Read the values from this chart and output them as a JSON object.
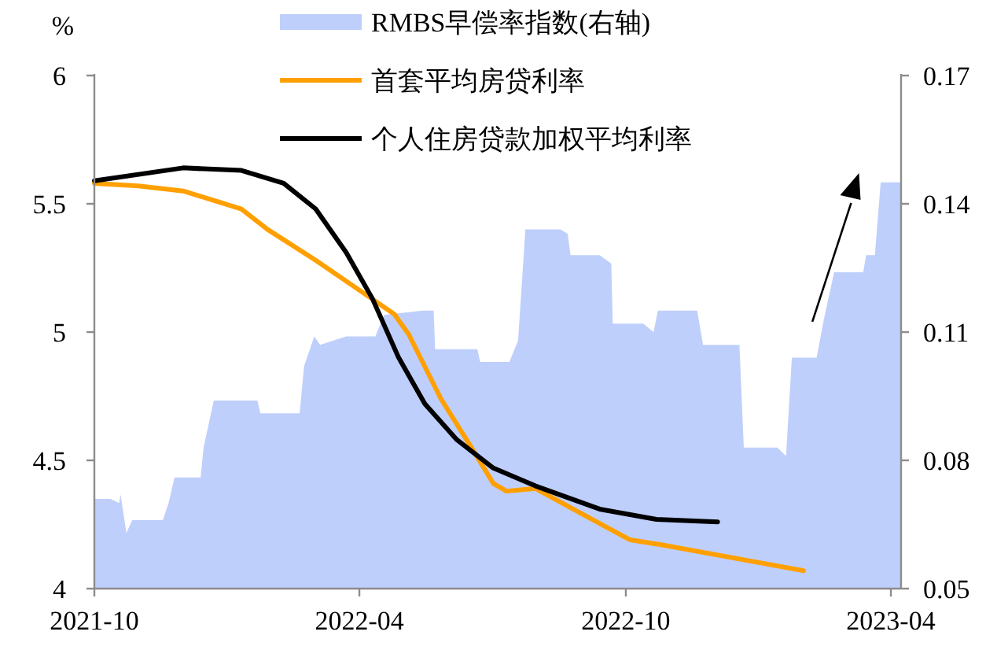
{
  "chart_data": {
    "type": "line",
    "ylabel": "%",
    "legend": "top",
    "xlim": [
      "2021-10-01",
      "2023-04-08"
    ],
    "xticks": [
      {
        "value": "2021-10-01",
        "label": "2021-10"
      },
      {
        "value": "2022-04-01",
        "label": "2022-04"
      },
      {
        "value": "2022-10-01",
        "label": "2022-10"
      },
      {
        "value": "2023-04-01",
        "label": "2023-04"
      }
    ],
    "ylim": [
      4,
      6
    ],
    "yticks": [
      4,
      4.5,
      5,
      5.5,
      6
    ],
    "y2lim": [
      0.05,
      0.17
    ],
    "y2ticks": [
      0.05,
      0.08,
      0.11,
      0.14,
      0.17
    ],
    "series": [
      {
        "name": "RMBS早偿率指数(右轴)",
        "type": "area",
        "axis": "y2",
        "color": "#bfcffc",
        "x": [
          "2021-10-01",
          "2021-10-12",
          "2021-10-18",
          "2021-10-19",
          "2021-10-23",
          "2021-10-27",
          "2021-11-17",
          "2021-11-21",
          "2021-11-25",
          "2021-12-13",
          "2021-12-15",
          "2021-12-22",
          "2022-01-21",
          "2022-01-23",
          "2022-02-19",
          "2022-02-22",
          "2022-03-01",
          "2022-03-05",
          "2022-03-23",
          "2022-04-12",
          "2022-04-18",
          "2022-05-14",
          "2022-05-22",
          "2022-05-23",
          "2022-06-21",
          "2022-06-23",
          "2022-07-13",
          "2022-07-19",
          "2022-07-24",
          "2022-08-17",
          "2022-08-22",
          "2022-08-24",
          "2022-09-13",
          "2022-09-21",
          "2022-09-22",
          "2022-10-13",
          "2022-10-20",
          "2022-10-23",
          "2022-11-19",
          "2022-11-23",
          "2022-12-18",
          "2022-12-21",
          "2023-01-13",
          "2023-01-19",
          "2023-01-23",
          "2023-02-09",
          "2023-02-14",
          "2023-02-21",
          "2023-03-13",
          "2023-03-15",
          "2023-03-21",
          "2023-03-25",
          "2023-04-08"
        ],
        "values": [
          0.071,
          0.071,
          0.07,
          0.072,
          0.063,
          0.066,
          0.066,
          0.07,
          0.076,
          0.076,
          0.083,
          0.094,
          0.094,
          0.091,
          0.091,
          0.102,
          0.109,
          0.107,
          0.109,
          0.109,
          0.114,
          0.115,
          0.115,
          0.106,
          0.106,
          0.103,
          0.103,
          0.108,
          0.134,
          0.134,
          0.133,
          0.128,
          0.128,
          0.126,
          0.112,
          0.112,
          0.11,
          0.115,
          0.115,
          0.107,
          0.107,
          0.083,
          0.083,
          0.081,
          0.104,
          0.104,
          0.113,
          0.124,
          0.124,
          0.128,
          0.128,
          0.145,
          0.145
        ]
      },
      {
        "name": "首套平均房贷利率",
        "type": "line",
        "color": "#ffa000",
        "x": [
          "2021-10-01",
          "2021-10-31",
          "2021-12-01",
          "2022-01-10",
          "2022-01-28",
          "2022-03-02",
          "2022-04-07",
          "2022-04-25",
          "2022-05-05",
          "2022-05-27",
          "2022-06-18",
          "2022-07-02",
          "2022-07-11",
          "2022-07-31",
          "2022-08-29",
          "2022-10-04",
          "2022-10-26",
          "2023-01-31"
        ],
        "values": [
          5.58,
          5.57,
          5.55,
          5.48,
          5.4,
          5.28,
          5.14,
          5.07,
          4.99,
          4.74,
          4.54,
          4.41,
          4.38,
          4.39,
          4.3,
          4.19,
          4.17,
          4.07
        ]
      },
      {
        "name": "个人住房贷款加权平均利率",
        "type": "line",
        "color": "#000000",
        "x": [
          "2021-10-01",
          "2021-12-01",
          "2022-01-10",
          "2022-02-08",
          "2022-03-02",
          "2022-03-23",
          "2022-04-10",
          "2022-04-28",
          "2022-05-16",
          "2022-06-07",
          "2022-07-02",
          "2022-07-31",
          "2022-09-13",
          "2022-10-22",
          "2022-12-03"
        ],
        "values": [
          5.59,
          5.64,
          5.63,
          5.58,
          5.48,
          5.31,
          5.13,
          4.9,
          4.72,
          4.58,
          4.47,
          4.4,
          4.31,
          4.27,
          4.26
        ]
      }
    ]
  }
}
